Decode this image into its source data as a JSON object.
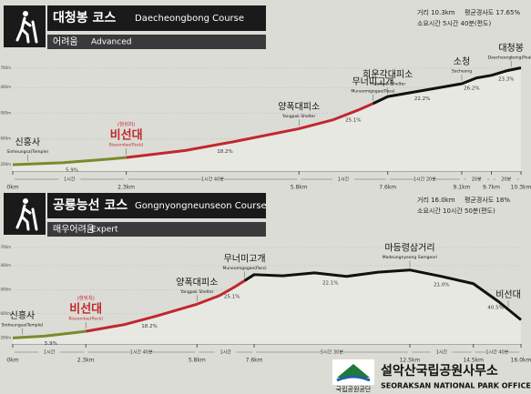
{
  "chart_data": [
    {
      "type": "line",
      "title": "대청봉 코스",
      "subtitle": "Daecheongbong Course",
      "difficulty": "어려움",
      "difficulty_en": "Advanced",
      "stats": [
        "거리 10.3km",
        "평균경사도 17.65%",
        "소요시간 5시간 40분(편도)"
      ],
      "xlim": [
        0,
        10.3
      ],
      "xticks": [
        {
          "value": 0,
          "label": "0km"
        },
        {
          "value": 2.3,
          "label": "2.3km"
        },
        {
          "value": 5.8,
          "label": "5.8km"
        },
        {
          "value": 7.6,
          "label": "7.6km"
        },
        {
          "value": 9.1,
          "label": "9.1km"
        },
        {
          "value": 9.7,
          "label": "9.7km"
        },
        {
          "value": 10.3,
          "label": "10.3km"
        }
      ],
      "ylim": [
        100,
        1800
      ],
      "yticks": [
        {
          "value": 200,
          "label": "200m"
        },
        {
          "value": 600,
          "label": "600m"
        },
        {
          "value": 1000,
          "label": "1000m"
        },
        {
          "value": 1400,
          "label": "1400m"
        },
        {
          "value": 1700,
          "label": "1700m"
        }
      ],
      "grid": true,
      "series": [
        {
          "color": "#7c8a2c",
          "x": [
            0,
            1,
            2,
            2.3
          ],
          "values": [
            200,
            230,
            290,
            310
          ]
        },
        {
          "color": "#c0282d",
          "x": [
            2.3,
            3.5,
            4.5,
            5.8,
            6.5,
            7.0,
            7.3
          ],
          "values": [
            310,
            420,
            560,
            760,
            900,
            1050,
            1150
          ]
        },
        {
          "color": "#111111",
          "x": [
            7.3,
            7.6,
            8.2,
            9.1,
            9.4,
            9.7,
            10.0,
            10.3
          ],
          "values": [
            1150,
            1260,
            1340,
            1460,
            1550,
            1590,
            1660,
            1708
          ]
        }
      ],
      "annotations": [
        {
          "text": "신흥사",
          "en": "Sinheungsa(Temple)",
          "x": 0.3,
          "color": "#111111"
        },
        {
          "text": "비선대",
          "note": "(현위치)",
          "en": "Biseondae(Rock)",
          "x": 2.3,
          "color": "#c0282d"
        },
        {
          "text": "양폭대피소",
          "en": "Yangpok Shelter",
          "x": 5.8,
          "color": "#111111"
        },
        {
          "text": "무너미고개",
          "en": "Muneomigogae(Pass)",
          "x": 7.3,
          "color": "#111111"
        },
        {
          "text": "희운각대피소",
          "en": "Huiungak Shelter",
          "x": 7.6,
          "color": "#111111"
        },
        {
          "text": "소청",
          "en": "Socheong",
          "x": 9.1,
          "color": "#111111"
        },
        {
          "text": "대청봉",
          "en": "Daecheongbong(Peak)",
          "x": 10.1,
          "color": "#111111"
        }
      ],
      "grades": [
        {
          "x": 1.2,
          "label": "5.9%"
        },
        {
          "x": 4.3,
          "label": "18.2%"
        },
        {
          "x": 6.9,
          "label": "25.1%"
        },
        {
          "x": 8.3,
          "label": "22.2%"
        },
        {
          "x": 9.3,
          "label": "26.2%"
        },
        {
          "x": 10.0,
          "label": "23.3%"
        }
      ],
      "segments": [
        {
          "from": 0,
          "to": 2.3,
          "time": "1시간"
        },
        {
          "from": 2.3,
          "to": 5.8,
          "time": "1시간 40분"
        },
        {
          "from": 5.8,
          "to": 7.6,
          "time": "1시간"
        },
        {
          "from": 7.6,
          "to": 9.1,
          "time": "1시간 20분"
        },
        {
          "from": 9.1,
          "to": 9.7,
          "time": "20분"
        },
        {
          "from": 9.7,
          "to": 10.3,
          "time": "20분"
        }
      ]
    },
    {
      "type": "line",
      "title": "공룡능선 코스",
      "subtitle": "Gongnyongneunseon Course",
      "difficulty": "매우어려움",
      "difficulty_en": "Expert",
      "stats": [
        "거리 16.0km",
        "평균경사도 18%",
        "소요시간 10시간 50분(편도)"
      ],
      "xlim": [
        0,
        16
      ],
      "xticks": [
        {
          "value": 0,
          "label": "0km"
        },
        {
          "value": 2.3,
          "label": "2.3km"
        },
        {
          "value": 5.8,
          "label": "5.8km"
        },
        {
          "value": 7.6,
          "label": "7.6km"
        },
        {
          "value": 12.5,
          "label": "12.5km"
        },
        {
          "value": 14.5,
          "label": "14.5km"
        },
        {
          "value": 16,
          "label": "16.0km"
        }
      ],
      "ylim": [
        100,
        1700
      ],
      "yticks": [
        {
          "value": 200,
          "label": "200m"
        },
        {
          "value": 600,
          "label": "600m"
        },
        {
          "value": 1000,
          "label": "1000m"
        },
        {
          "value": 1400,
          "label": "1400m"
        },
        {
          "value": 1700,
          "label": "1700m"
        }
      ],
      "grid": true,
      "series": [
        {
          "color": "#7c8a2c",
          "x": [
            0,
            1,
            2,
            2.3
          ],
          "values": [
            200,
            230,
            290,
            310
          ]
        },
        {
          "color": "#c0282d",
          "x": [
            2.3,
            3.5,
            4.5,
            5.8,
            6.5,
            7.0,
            7.3
          ],
          "values": [
            310,
            420,
            560,
            760,
            900,
            1050,
            1150
          ]
        },
        {
          "color": "#111111",
          "x": [
            7.3,
            7.6,
            8.5,
            9.5,
            10.5,
            11.5,
            12.5,
            13.5,
            14.5,
            15.3,
            16
          ],
          "values": [
            1150,
            1250,
            1230,
            1280,
            1220,
            1290,
            1327,
            1220,
            1100,
            800,
            500
          ]
        }
      ],
      "annotations": [
        {
          "text": "신흥사",
          "en": "Sinheungsa(Temple)",
          "x": 0.3,
          "color": "#111111"
        },
        {
          "text": "비선대",
          "note": "(현위치)",
          "en": "Biseondae(Rock)",
          "x": 2.3,
          "color": "#c0282d"
        },
        {
          "text": "양폭대피소",
          "en": "Yangpok Shelter",
          "x": 5.8,
          "color": "#111111"
        },
        {
          "text": "무너미고개",
          "en": "Muneomigogae(Pass)",
          "x": 7.3,
          "color": "#111111"
        },
        {
          "text": "마등령삼거리",
          "en": "Madeungnyeong Samgeori",
          "x": 12.5,
          "color": "#111111"
        },
        {
          "text": "비선대",
          "x": 15.6,
          "color": "#111111"
        }
      ],
      "grades": [
        {
          "x": 1.2,
          "label": "5.9%"
        },
        {
          "x": 4.3,
          "label": "18.2%"
        },
        {
          "x": 6.9,
          "label": "25.1%"
        },
        {
          "x": 10.0,
          "label": "22.1%"
        },
        {
          "x": 13.5,
          "label": "21.0%"
        },
        {
          "x": 15.2,
          "label": "40.5%"
        }
      ],
      "segments": [
        {
          "from": 0,
          "to": 2.3,
          "time": "1시간"
        },
        {
          "from": 2.3,
          "to": 5.8,
          "time": "1시간 40분"
        },
        {
          "from": 5.8,
          "to": 7.6,
          "time": "1시간"
        },
        {
          "from": 7.6,
          "to": 12.5,
          "time": "5시간 30분"
        },
        {
          "from": 12.5,
          "to": 14.5,
          "time": "1시간"
        },
        {
          "from": 14.5,
          "to": 16,
          "time": "1시간 40분"
        }
      ]
    }
  ],
  "footer": {
    "org": "설악산국립공원사무소",
    "org_en": "SEORAKSAN NATIONAL PARK OFFICE",
    "logo_text": "국립공원공단"
  }
}
